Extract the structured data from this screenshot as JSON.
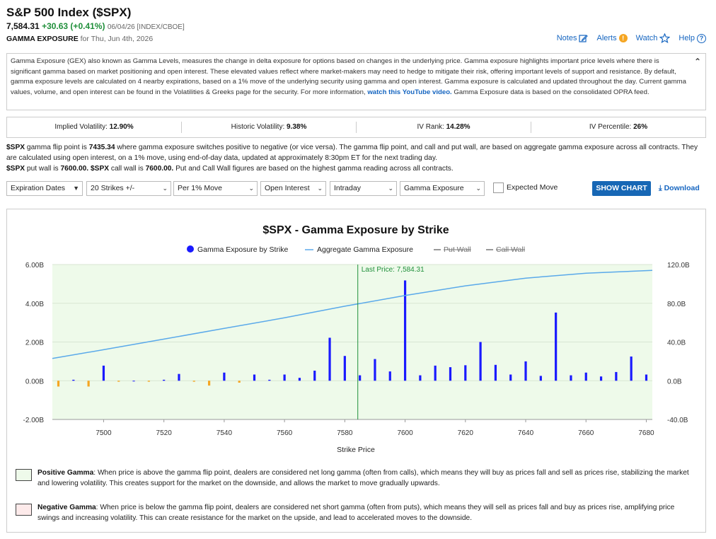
{
  "header": {
    "title": "S&P 500 Index ($SPX)",
    "last": "7,584.31",
    "change": "+30.63 (+0.41%)",
    "meta": "06/04/26 [INDEX/CBOE]",
    "gex_label": "GAMMA EXPOSURE",
    "gex_date": "for Thu, Jun 4th, 2026"
  },
  "toplinks": {
    "notes": "Notes",
    "alerts": "Alerts",
    "watch": "Watch",
    "help": "Help"
  },
  "description": {
    "text": "Gamma Exposure (GEX) also known as Gamma Levels, measures the change in delta exposure for options based on changes in the underlying price. Gamma exposure highlights important price levels where there is significant gamma based on market positioning and open interest. These elevated values reflect where market-makers may need to hedge to mitigate their risk, offering important levels of support and resistance. By default, gamma exposure levels are calculated on 4 nearby expirations, based on a 1% move of the underlying security using gamma and open interest. Gamma exposure is calculated and updated throughout the day. Current gamma values, volume, and open interest can be found in the Volatilities & Greeks page for the security. For more information,",
    "link": "watch this YouTube video.",
    "text2": "Gamma Exposure data is based on the consolidated OPRA feed."
  },
  "stats": [
    {
      "label": "Implied Volatility:",
      "value": "12.90%"
    },
    {
      "label": "Historic Volatility:",
      "value": "9.38%"
    },
    {
      "label": "IV Rank:",
      "value": "14.28%"
    },
    {
      "label": "IV Percentile:",
      "value": "26%"
    }
  ],
  "flip": {
    "p1a": "$SPX",
    "p1b": "gamma flip point is",
    "p1c": "7435.34",
    "p1d": "where gamma exposure switches positive to negative (or vice versa). The gamma flip point, and call and put wall, are based on aggregate gamma exposure across all contracts. They are calculated using open interest, on a 1% move, using end-of-day data, updated at approximately 8:30pm ET for the next trading day.",
    "p2a": "$SPX",
    "p2b": "put wall is",
    "p2c": "7600.00.",
    "p2d": "$SPX",
    "p2e": "call wall is",
    "p2f": "7600.00.",
    "p2g": "Put and Call Wall figures are based on the highest gamma reading across all contracts."
  },
  "controls": {
    "expiration": "Expiration Dates",
    "strikes": "20 Strikes +/-",
    "move": "Per 1% Move",
    "basis": "Open Interest",
    "timeframe": "Intraday",
    "metric": "Gamma Exposure",
    "expected_move": "Expected Move",
    "show_chart": "SHOW CHART",
    "download": "Download"
  },
  "legend_info": {
    "positive_title": "Positive Gamma",
    "positive_text": ": When price is above the gamma flip point, dealers are considered net long gamma (often from calls), which means they will buy as prices fall and sell as prices rise, stabilizing the market and lowering volatility. This creates support for the market on the downside, and allows the market to move gradually upwards.",
    "negative_title": "Negative Gamma",
    "negative_text": ": When price is below the gamma flip point, dealers are considered net short gamma (often from puts), which means they will sell as prices fall and buy as prices rise, amplifying price swings and increasing volatility. This can create resistance for the market on the upside, and lead to accelerated moves to the downside."
  },
  "colors": {
    "positive_bar": "#1a1aff",
    "negative_bar": "#f5a623",
    "aggregate_line": "#5aa9ea",
    "last_price_line": "#1f8f3a",
    "positive_zone": "#eefaea",
    "negative_zone": "#fdeaea"
  },
  "chart_data": {
    "type": "bar",
    "title": "$SPX - Gamma Exposure by Strike",
    "xlabel": "Strike Price",
    "ylabel": "",
    "xlim": [
      7483,
      7682
    ],
    "ylim": [
      -2.0,
      6.0
    ],
    "y2lim": [
      -40,
      120
    ],
    "yticks": [
      "-2.00B",
      "0.00B",
      "2.00B",
      "4.00B",
      "6.00B"
    ],
    "y2ticks": [
      "-40.0B",
      "0.0B",
      "40.0B",
      "80.0B",
      "120.0B"
    ],
    "xticks": [
      7500,
      7520,
      7540,
      7560,
      7580,
      7600,
      7620,
      7640,
      7660,
      7680
    ],
    "legend": [
      "Gamma Exposure by Strike",
      "Aggregate Gamma Exposure",
      "Put Wall",
      "Call Wall"
    ],
    "last_price": 7584.31,
    "last_price_label": "Last Price: 7,584.31",
    "series": [
      {
        "name": "Gamma Exposure by Strike",
        "x": [
          7485,
          7490,
          7495,
          7500,
          7505,
          7510,
          7515,
          7520,
          7525,
          7530,
          7535,
          7540,
          7545,
          7550,
          7555,
          7560,
          7565,
          7570,
          7575,
          7580,
          7585,
          7590,
          7595,
          7600,
          7605,
          7610,
          7615,
          7620,
          7625,
          7630,
          7635,
          7640,
          7645,
          7650,
          7655,
          7660,
          7665,
          7670,
          7675,
          7680
        ],
        "values": [
          -0.3,
          0.05,
          -0.3,
          0.78,
          -0.05,
          0.0,
          -0.05,
          0.05,
          0.35,
          -0.05,
          -0.25,
          0.42,
          -0.1,
          0.32,
          0.05,
          0.32,
          0.15,
          0.52,
          2.22,
          1.28,
          0.28,
          1.12,
          0.48,
          5.18,
          0.28,
          0.78,
          0.7,
          0.8,
          2.0,
          0.82,
          0.32,
          1.0,
          0.25,
          3.52,
          0.28,
          0.42,
          0.22,
          0.45,
          1.25,
          0.32
        ]
      },
      {
        "name": "Aggregate Gamma Exposure",
        "x": [
          7483,
          7500,
          7520,
          7540,
          7560,
          7580,
          7600,
          7620,
          7640,
          7660,
          7682
        ],
        "values": [
          23,
          32,
          43,
          54,
          65,
          77,
          88,
          98,
          106,
          111,
          114
        ]
      }
    ]
  }
}
